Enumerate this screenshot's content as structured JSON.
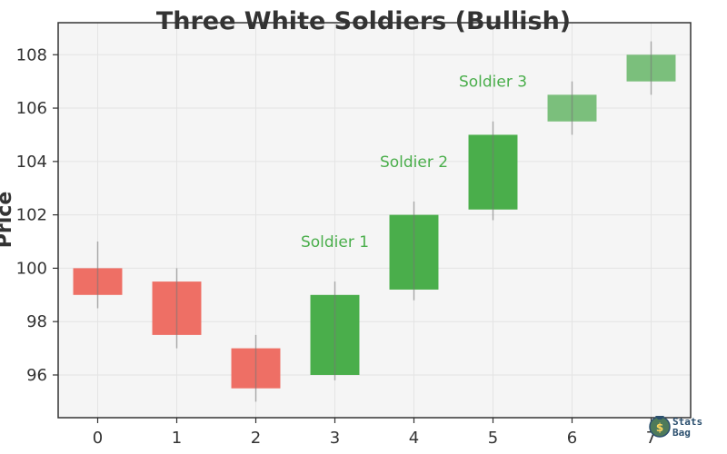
{
  "chart_data": {
    "type": "candlestick",
    "title": "Three White Soldiers (Bullish)",
    "ylabel": "Price",
    "xlabel": "",
    "x": [
      0,
      1,
      2,
      3,
      4,
      5,
      6,
      7
    ],
    "x_ticks": [
      "0",
      "1",
      "2",
      "3",
      "4",
      "5",
      "6",
      "7"
    ],
    "y_ticks": [
      "96",
      "98",
      "100",
      "102",
      "104",
      "106",
      "108"
    ],
    "xlim": [
      -0.5,
      7.5
    ],
    "ylim": [
      94.4,
      109.2
    ],
    "grid": true,
    "candles": [
      {
        "x": 0,
        "open": 100.0,
        "close": 99.0,
        "high": 101.0,
        "low": 98.5
      },
      {
        "x": 1,
        "open": 99.5,
        "close": 97.5,
        "high": 100.0,
        "low": 97.0
      },
      {
        "x": 2,
        "open": 97.0,
        "close": 95.5,
        "high": 97.5,
        "low": 95.0
      },
      {
        "x": 3,
        "open": 96.0,
        "close": 99.0,
        "high": 99.5,
        "low": 95.8
      },
      {
        "x": 4,
        "open": 99.2,
        "close": 102.0,
        "high": 102.5,
        "low": 98.8
      },
      {
        "x": 5,
        "open": 102.2,
        "close": 105.0,
        "high": 105.5,
        "low": 101.8
      },
      {
        "x": 6,
        "open": 105.5,
        "close": 106.5,
        "high": 107.0,
        "low": 105.0
      },
      {
        "x": 7,
        "open": 107.0,
        "close": 108.0,
        "high": 108.5,
        "low": 106.5
      }
    ],
    "highlight_soldiers": [
      3,
      4,
      5
    ],
    "annotations": [
      {
        "text": "Soldier 1",
        "x": 3,
        "y": 101.0
      },
      {
        "text": "Soldier 2",
        "x": 4,
        "y": 104.0
      },
      {
        "text": "Soldier 3",
        "x": 5,
        "y": 107.0
      }
    ],
    "colors": {
      "bearish": "#ee6f65",
      "bullish": "#7bbf7c",
      "soldier": "#4aae4b",
      "annotation": "#4aae4b",
      "wick": "#777777",
      "plot_bg": "#f5f5f5",
      "axis": "#333333"
    }
  },
  "watermark": {
    "icon": "money-bag-icon",
    "line1": "Stats",
    "line2": "Bag"
  }
}
